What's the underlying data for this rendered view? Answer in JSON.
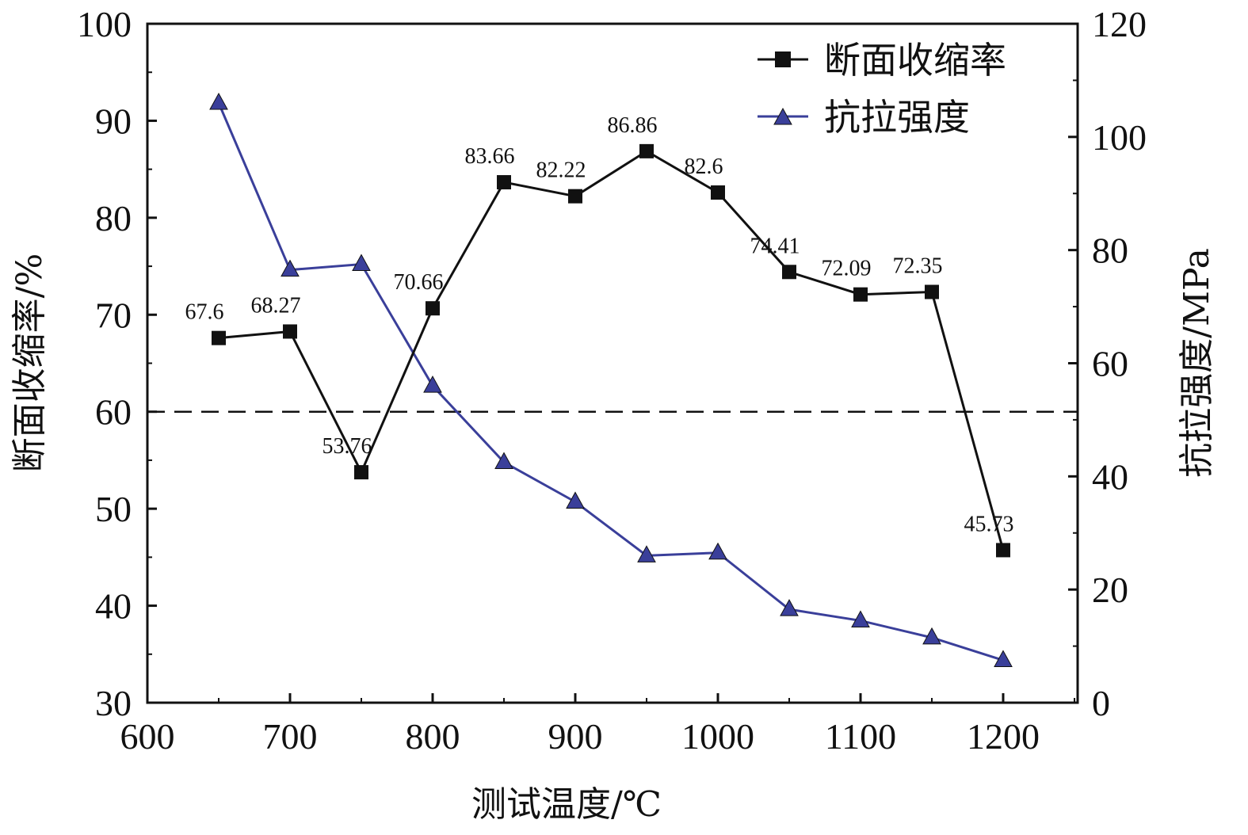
{
  "chart_data": {
    "type": "line",
    "xlabel": "测试温度/℃",
    "ylabel_left": "断面收缩率/%",
    "ylabel_right": "抗拉强度/MPa",
    "xlim": [
      600,
      1250
    ],
    "ylim_left": [
      30,
      100
    ],
    "ylim_right": [
      0,
      120
    ],
    "xticks": [
      600,
      700,
      800,
      900,
      1000,
      1100,
      1200
    ],
    "yticks_left": [
      30,
      40,
      50,
      60,
      70,
      80,
      90,
      100
    ],
    "yticks_right": [
      0,
      20,
      40,
      60,
      80,
      100,
      120
    ],
    "reference_line": {
      "axis": "left",
      "y": 60,
      "style": "dashed"
    },
    "legend_position": "top-right",
    "series": [
      {
        "name": "断面收缩率",
        "axis": "left",
        "marker": "square",
        "color": "#111111",
        "x": [
          650,
          700,
          750,
          800,
          850,
          900,
          950,
          1000,
          1050,
          1100,
          1150,
          1200
        ],
        "values": [
          67.6,
          68.27,
          53.76,
          70.66,
          83.66,
          82.22,
          86.86,
          82.6,
          74.41,
          72.09,
          72.35,
          45.73
        ],
        "labels": [
          "67.6",
          "68.27",
          "53.76",
          "70.66",
          "83.66",
          "82.22",
          "86.86",
          "82.6",
          "74.41",
          "72.09",
          "72.35",
          "45.73"
        ]
      },
      {
        "name": "抗拉强度",
        "axis": "right",
        "marker": "triangle",
        "color": "#3a3f9a",
        "x": [
          650,
          700,
          750,
          800,
          850,
          900,
          950,
          1000,
          1050,
          1100,
          1150,
          1200
        ],
        "values": [
          106,
          76.5,
          77.5,
          56,
          42.5,
          35.5,
          26,
          26.5,
          16.5,
          14.5,
          11.5,
          7.5
        ]
      }
    ]
  }
}
